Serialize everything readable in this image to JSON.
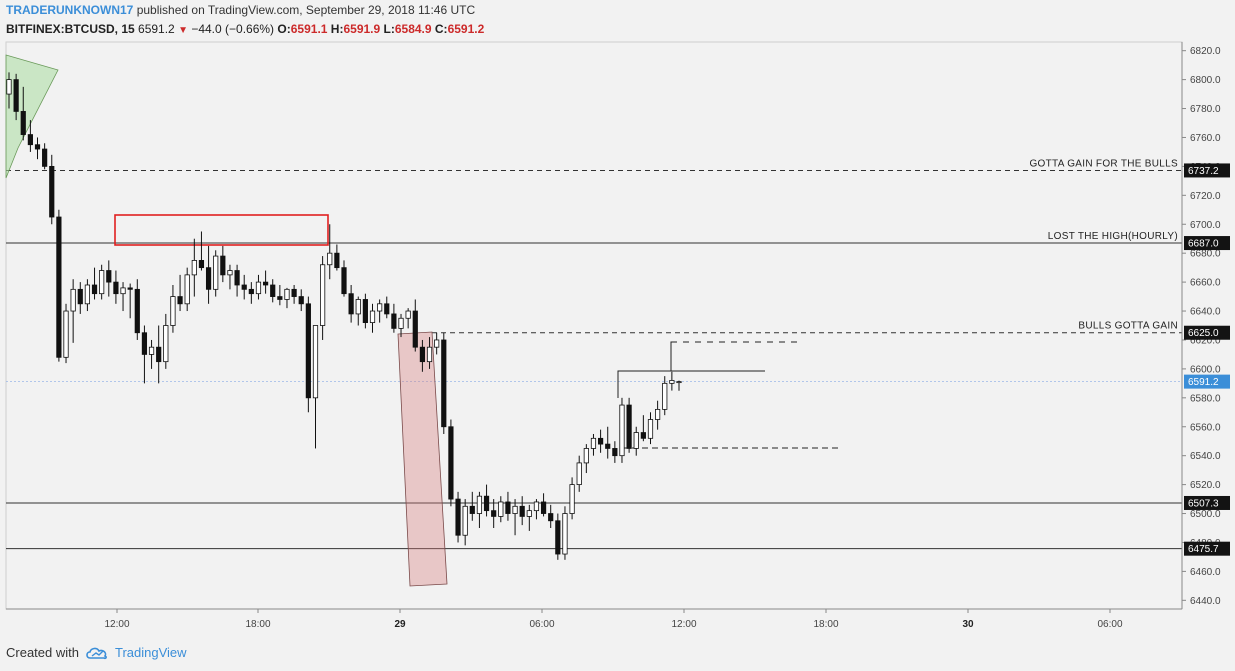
{
  "header": {
    "author": "TRADERUNKNOWN17",
    "published": "published on TradingView.com, September 29, 2018 11:46 UTC",
    "symbol": "BITFINEX:BTCUSD, 15",
    "last": "6591.2",
    "change": "−44.0 (−0.66%)",
    "o_label": "O:",
    "o_val": "6591.1",
    "h_label": "H:",
    "h_val": "6591.9",
    "l_label": "L:",
    "l_val": "6584.9",
    "c_label": "C:",
    "c_val": "6591.2"
  },
  "footer": {
    "created_with": "Created with",
    "brand": "TradingView"
  },
  "colors": {
    "down_arrow": "#cc2a2a",
    "last_badge": "#3b8ed8",
    "label_badge": "#131313",
    "red_zone": "#f4d6d6",
    "grey_zone": "#dcdcdc"
  },
  "chart_data": {
    "type": "candlestick",
    "ylim": [
      6434,
      6826
    ],
    "y_ticks": [
      6440,
      6460,
      6480,
      6500,
      6520,
      6540,
      6560,
      6580,
      6600,
      6620,
      6640,
      6660,
      6680,
      6700,
      6720,
      6740,
      6760,
      6780,
      6800,
      6820
    ],
    "x_ticks": [
      {
        "label": "12:00",
        "bold": false
      },
      {
        "label": "18:00",
        "bold": false
      },
      {
        "label": "29",
        "bold": true
      },
      {
        "label": "06:00",
        "bold": false
      },
      {
        "label": "12:00",
        "bold": false
      },
      {
        "label": "18:00",
        "bold": false
      },
      {
        "label": "30",
        "bold": true
      },
      {
        "label": "06:00",
        "bold": false
      }
    ],
    "horizontal_levels": [
      {
        "price": 6737.2,
        "label": "6737.2",
        "annotation": "GOTTA GAIN FOR THE BULLS",
        "style": "dashed"
      },
      {
        "price": 6687.0,
        "label": "6687.0",
        "annotation": "LOST THE HIGH(HOURLY)",
        "style": "solid"
      },
      {
        "price": 6625.0,
        "label": "6625.0",
        "annotation": "BULLS GOTTA GAIN",
        "style": "dashed"
      },
      {
        "price": 6507.3,
        "label": "6507.3",
        "annotation": "",
        "style": "solid"
      },
      {
        "price": 6475.7,
        "label": "6475.7",
        "annotation": "",
        "style": "solid"
      }
    ],
    "last_price": {
      "price": 6591.2,
      "label": "6591.2"
    },
    "zones": [
      {
        "kind": "grey",
        "from": 6802,
        "to": 6826
      },
      {
        "kind": "red",
        "from": 6763,
        "to": 6790
      }
    ],
    "candles": [
      [
        6790,
        6805,
        6780,
        6800
      ],
      [
        6800,
        6804,
        6772,
        6778
      ],
      [
        6778,
        6795,
        6758,
        6762
      ],
      [
        6762,
        6772,
        6750,
        6755
      ],
      [
        6755,
        6760,
        6745,
        6752
      ],
      [
        6752,
        6756,
        6738,
        6740
      ],
      [
        6740,
        6748,
        6700,
        6705
      ],
      [
        6705,
        6710,
        6605,
        6608
      ],
      [
        6608,
        6645,
        6604,
        6640
      ],
      [
        6640,
        6662,
        6618,
        6655
      ],
      [
        6655,
        6660,
        6638,
        6645
      ],
      [
        6645,
        6662,
        6640,
        6658
      ],
      [
        6658,
        6670,
        6648,
        6652
      ],
      [
        6652,
        6672,
        6648,
        6668
      ],
      [
        6668,
        6675,
        6650,
        6660
      ],
      [
        6660,
        6668,
        6645,
        6652
      ],
      [
        6652,
        6660,
        6640,
        6656
      ],
      [
        6656,
        6659,
        6635,
        6655
      ],
      [
        6655,
        6662,
        6620,
        6625
      ],
      [
        6625,
        6630,
        6590,
        6610
      ],
      [
        6610,
        6620,
        6600,
        6615
      ],
      [
        6615,
        6630,
        6590,
        6605
      ],
      [
        6605,
        6638,
        6600,
        6630
      ],
      [
        6630,
        6658,
        6625,
        6650
      ],
      [
        6650,
        6665,
        6640,
        6645
      ],
      [
        6645,
        6670,
        6640,
        6665
      ],
      [
        6665,
        6690,
        6650,
        6675
      ],
      [
        6675,
        6695,
        6668,
        6670
      ],
      [
        6670,
        6685,
        6645,
        6655
      ],
      [
        6655,
        6682,
        6650,
        6678
      ],
      [
        6678,
        6685,
        6660,
        6665
      ],
      [
        6665,
        6672,
        6655,
        6668
      ],
      [
        6668,
        6672,
        6650,
        6658
      ],
      [
        6658,
        6665,
        6648,
        6655
      ],
      [
        6655,
        6660,
        6645,
        6652
      ],
      [
        6652,
        6665,
        6648,
        6660
      ],
      [
        6660,
        6668,
        6652,
        6658
      ],
      [
        6658,
        6662,
        6646,
        6650
      ],
      [
        6650,
        6658,
        6644,
        6648
      ],
      [
        6648,
        6656,
        6642,
        6655
      ],
      [
        6655,
        6658,
        6645,
        6650
      ],
      [
        6650,
        6655,
        6640,
        6645
      ],
      [
        6645,
        6650,
        6570,
        6580
      ],
      [
        6580,
        6630,
        6545,
        6630
      ],
      [
        6630,
        6678,
        6620,
        6672
      ],
      [
        6672,
        6700,
        6662,
        6680
      ],
      [
        6680,
        6686,
        6668,
        6670
      ],
      [
        6670,
        6675,
        6650,
        6652
      ],
      [
        6652,
        6658,
        6632,
        6638
      ],
      [
        6638,
        6650,
        6630,
        6648
      ],
      [
        6648,
        6652,
        6628,
        6632
      ],
      [
        6632,
        6645,
        6625,
        6640
      ],
      [
        6640,
        6648,
        6632,
        6645
      ],
      [
        6645,
        6650,
        6635,
        6638
      ],
      [
        6638,
        6645,
        6625,
        6628
      ],
      [
        6628,
        6638,
        6622,
        6635
      ],
      [
        6635,
        6642,
        6628,
        6640
      ],
      [
        6640,
        6648,
        6612,
        6615
      ],
      [
        6615,
        6620,
        6598,
        6605
      ],
      [
        6605,
        6622,
        6600,
        6615
      ],
      [
        6615,
        6625,
        6610,
        6620
      ],
      [
        6620,
        6625,
        6555,
        6560
      ],
      [
        6560,
        6565,
        6505,
        6510
      ],
      [
        6510,
        6515,
        6480,
        6485
      ],
      [
        6485,
        6510,
        6478,
        6505
      ],
      [
        6505,
        6515,
        6495,
        6500
      ],
      [
        6500,
        6515,
        6490,
        6512
      ],
      [
        6512,
        6520,
        6498,
        6502
      ],
      [
        6502,
        6510,
        6490,
        6498
      ],
      [
        6498,
        6512,
        6494,
        6508
      ],
      [
        6508,
        6515,
        6495,
        6500
      ],
      [
        6500,
        6510,
        6485,
        6505
      ],
      [
        6505,
        6512,
        6492,
        6498
      ],
      [
        6498,
        6506,
        6488,
        6502
      ],
      [
        6502,
        6510,
        6496,
        6508
      ],
      [
        6508,
        6514,
        6498,
        6500
      ],
      [
        6500,
        6506,
        6490,
        6495
      ],
      [
        6495,
        6500,
        6468,
        6472
      ],
      [
        6472,
        6505,
        6468,
        6500
      ],
      [
        6500,
        6525,
        6496,
        6520
      ],
      [
        6520,
        6540,
        6515,
        6535
      ],
      [
        6535,
        6548,
        6528,
        6545
      ],
      [
        6545,
        6555,
        6540,
        6552
      ],
      [
        6552,
        6558,
        6542,
        6548
      ],
      [
        6548,
        6560,
        6538,
        6545
      ],
      [
        6545,
        6550,
        6535,
        6540
      ],
      [
        6540,
        6580,
        6535,
        6575
      ],
      [
        6575,
        6580,
        6542,
        6545
      ],
      [
        6545,
        6560,
        6540,
        6556
      ],
      [
        6556,
        6568,
        6550,
        6552
      ],
      [
        6552,
        6570,
        6548,
        6565
      ],
      [
        6565,
        6578,
        6558,
        6572
      ],
      [
        6572,
        6595,
        6568,
        6590
      ],
      [
        6590,
        6598,
        6585,
        6592
      ],
      [
        6591.1,
        6591.9,
        6584.9,
        6591.2
      ]
    ]
  }
}
